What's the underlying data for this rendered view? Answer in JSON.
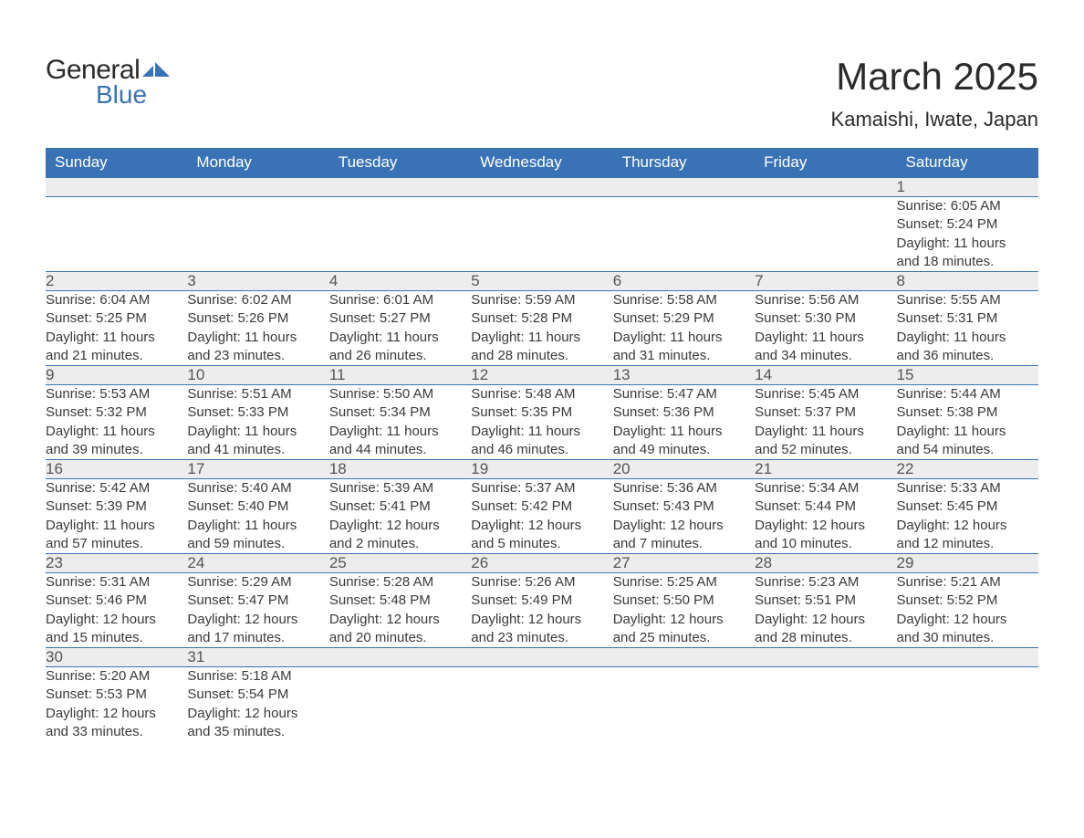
{
  "logo": {
    "text1": "General",
    "text2": "Blue"
  },
  "title": "March 2025",
  "location": "Kamaishi, Iwate, Japan",
  "colors": {
    "header_bg": "#3a73b5",
    "header_text": "#ffffff",
    "daynum_bg": "#ededed",
    "border": "#3a73b5",
    "text": "#333333",
    "logo_blue": "#3a73b5"
  },
  "typography": {
    "title_fontsize": 42,
    "location_fontsize": 22,
    "dayheader_fontsize": 17,
    "body_fontsize": 15
  },
  "layout": {
    "columns": 7,
    "rows": 6
  },
  "day_headers": [
    "Sunday",
    "Monday",
    "Tuesday",
    "Wednesday",
    "Thursday",
    "Friday",
    "Saturday"
  ],
  "weeks": [
    [
      null,
      null,
      null,
      null,
      null,
      null,
      {
        "n": "1",
        "sunrise": "Sunrise: 6:05 AM",
        "sunset": "Sunset: 5:24 PM",
        "d1": "Daylight: 11 hours",
        "d2": "and 18 minutes."
      }
    ],
    [
      {
        "n": "2",
        "sunrise": "Sunrise: 6:04 AM",
        "sunset": "Sunset: 5:25 PM",
        "d1": "Daylight: 11 hours",
        "d2": "and 21 minutes."
      },
      {
        "n": "3",
        "sunrise": "Sunrise: 6:02 AM",
        "sunset": "Sunset: 5:26 PM",
        "d1": "Daylight: 11 hours",
        "d2": "and 23 minutes."
      },
      {
        "n": "4",
        "sunrise": "Sunrise: 6:01 AM",
        "sunset": "Sunset: 5:27 PM",
        "d1": "Daylight: 11 hours",
        "d2": "and 26 minutes."
      },
      {
        "n": "5",
        "sunrise": "Sunrise: 5:59 AM",
        "sunset": "Sunset: 5:28 PM",
        "d1": "Daylight: 11 hours",
        "d2": "and 28 minutes."
      },
      {
        "n": "6",
        "sunrise": "Sunrise: 5:58 AM",
        "sunset": "Sunset: 5:29 PM",
        "d1": "Daylight: 11 hours",
        "d2": "and 31 minutes."
      },
      {
        "n": "7",
        "sunrise": "Sunrise: 5:56 AM",
        "sunset": "Sunset: 5:30 PM",
        "d1": "Daylight: 11 hours",
        "d2": "and 34 minutes."
      },
      {
        "n": "8",
        "sunrise": "Sunrise: 5:55 AM",
        "sunset": "Sunset: 5:31 PM",
        "d1": "Daylight: 11 hours",
        "d2": "and 36 minutes."
      }
    ],
    [
      {
        "n": "9",
        "sunrise": "Sunrise: 5:53 AM",
        "sunset": "Sunset: 5:32 PM",
        "d1": "Daylight: 11 hours",
        "d2": "and 39 minutes."
      },
      {
        "n": "10",
        "sunrise": "Sunrise: 5:51 AM",
        "sunset": "Sunset: 5:33 PM",
        "d1": "Daylight: 11 hours",
        "d2": "and 41 minutes."
      },
      {
        "n": "11",
        "sunrise": "Sunrise: 5:50 AM",
        "sunset": "Sunset: 5:34 PM",
        "d1": "Daylight: 11 hours",
        "d2": "and 44 minutes."
      },
      {
        "n": "12",
        "sunrise": "Sunrise: 5:48 AM",
        "sunset": "Sunset: 5:35 PM",
        "d1": "Daylight: 11 hours",
        "d2": "and 46 minutes."
      },
      {
        "n": "13",
        "sunrise": "Sunrise: 5:47 AM",
        "sunset": "Sunset: 5:36 PM",
        "d1": "Daylight: 11 hours",
        "d2": "and 49 minutes."
      },
      {
        "n": "14",
        "sunrise": "Sunrise: 5:45 AM",
        "sunset": "Sunset: 5:37 PM",
        "d1": "Daylight: 11 hours",
        "d2": "and 52 minutes."
      },
      {
        "n": "15",
        "sunrise": "Sunrise: 5:44 AM",
        "sunset": "Sunset: 5:38 PM",
        "d1": "Daylight: 11 hours",
        "d2": "and 54 minutes."
      }
    ],
    [
      {
        "n": "16",
        "sunrise": "Sunrise: 5:42 AM",
        "sunset": "Sunset: 5:39 PM",
        "d1": "Daylight: 11 hours",
        "d2": "and 57 minutes."
      },
      {
        "n": "17",
        "sunrise": "Sunrise: 5:40 AM",
        "sunset": "Sunset: 5:40 PM",
        "d1": "Daylight: 11 hours",
        "d2": "and 59 minutes."
      },
      {
        "n": "18",
        "sunrise": "Sunrise: 5:39 AM",
        "sunset": "Sunset: 5:41 PM",
        "d1": "Daylight: 12 hours",
        "d2": "and 2 minutes."
      },
      {
        "n": "19",
        "sunrise": "Sunrise: 5:37 AM",
        "sunset": "Sunset: 5:42 PM",
        "d1": "Daylight: 12 hours",
        "d2": "and 5 minutes."
      },
      {
        "n": "20",
        "sunrise": "Sunrise: 5:36 AM",
        "sunset": "Sunset: 5:43 PM",
        "d1": "Daylight: 12 hours",
        "d2": "and 7 minutes."
      },
      {
        "n": "21",
        "sunrise": "Sunrise: 5:34 AM",
        "sunset": "Sunset: 5:44 PM",
        "d1": "Daylight: 12 hours",
        "d2": "and 10 minutes."
      },
      {
        "n": "22",
        "sunrise": "Sunrise: 5:33 AM",
        "sunset": "Sunset: 5:45 PM",
        "d1": "Daylight: 12 hours",
        "d2": "and 12 minutes."
      }
    ],
    [
      {
        "n": "23",
        "sunrise": "Sunrise: 5:31 AM",
        "sunset": "Sunset: 5:46 PM",
        "d1": "Daylight: 12 hours",
        "d2": "and 15 minutes."
      },
      {
        "n": "24",
        "sunrise": "Sunrise: 5:29 AM",
        "sunset": "Sunset: 5:47 PM",
        "d1": "Daylight: 12 hours",
        "d2": "and 17 minutes."
      },
      {
        "n": "25",
        "sunrise": "Sunrise: 5:28 AM",
        "sunset": "Sunset: 5:48 PM",
        "d1": "Daylight: 12 hours",
        "d2": "and 20 minutes."
      },
      {
        "n": "26",
        "sunrise": "Sunrise: 5:26 AM",
        "sunset": "Sunset: 5:49 PM",
        "d1": "Daylight: 12 hours",
        "d2": "and 23 minutes."
      },
      {
        "n": "27",
        "sunrise": "Sunrise: 5:25 AM",
        "sunset": "Sunset: 5:50 PM",
        "d1": "Daylight: 12 hours",
        "d2": "and 25 minutes."
      },
      {
        "n": "28",
        "sunrise": "Sunrise: 5:23 AM",
        "sunset": "Sunset: 5:51 PM",
        "d1": "Daylight: 12 hours",
        "d2": "and 28 minutes."
      },
      {
        "n": "29",
        "sunrise": "Sunrise: 5:21 AM",
        "sunset": "Sunset: 5:52 PM",
        "d1": "Daylight: 12 hours",
        "d2": "and 30 minutes."
      }
    ],
    [
      {
        "n": "30",
        "sunrise": "Sunrise: 5:20 AM",
        "sunset": "Sunset: 5:53 PM",
        "d1": "Daylight: 12 hours",
        "d2": "and 33 minutes."
      },
      {
        "n": "31",
        "sunrise": "Sunrise: 5:18 AM",
        "sunset": "Sunset: 5:54 PM",
        "d1": "Daylight: 12 hours",
        "d2": "and 35 minutes."
      },
      null,
      null,
      null,
      null,
      null
    ]
  ]
}
